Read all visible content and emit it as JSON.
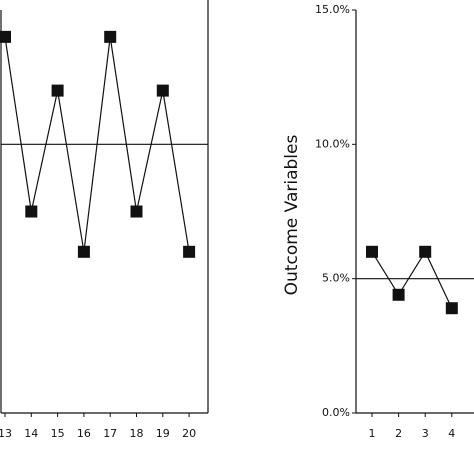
{
  "chart_data": [
    {
      "type": "line",
      "categories": [
        "13",
        "14",
        "15",
        "16",
        "17",
        "18",
        "19",
        "20"
      ],
      "values": [
        14,
        7.5,
        12,
        6,
        14,
        7.5,
        12,
        6
      ],
      "reference_line": 10,
      "ylim": [
        0,
        15
      ],
      "color": "#111111"
    },
    {
      "type": "line",
      "y_label": "Outcome Variables",
      "categories": [
        "1",
        "2",
        "3",
        "4"
      ],
      "values": [
        6,
        4.4,
        6,
        3.9
      ],
      "reference_line": 5,
      "ylim": [
        0,
        15
      ],
      "yticks": [
        {
          "value": 0,
          "label": "0.0%"
        },
        {
          "value": 5,
          "label": "5.0%"
        },
        {
          "value": 10,
          "label": "10.0%"
        },
        {
          "value": 15,
          "label": "15.0%"
        }
      ],
      "color": "#111111"
    }
  ]
}
